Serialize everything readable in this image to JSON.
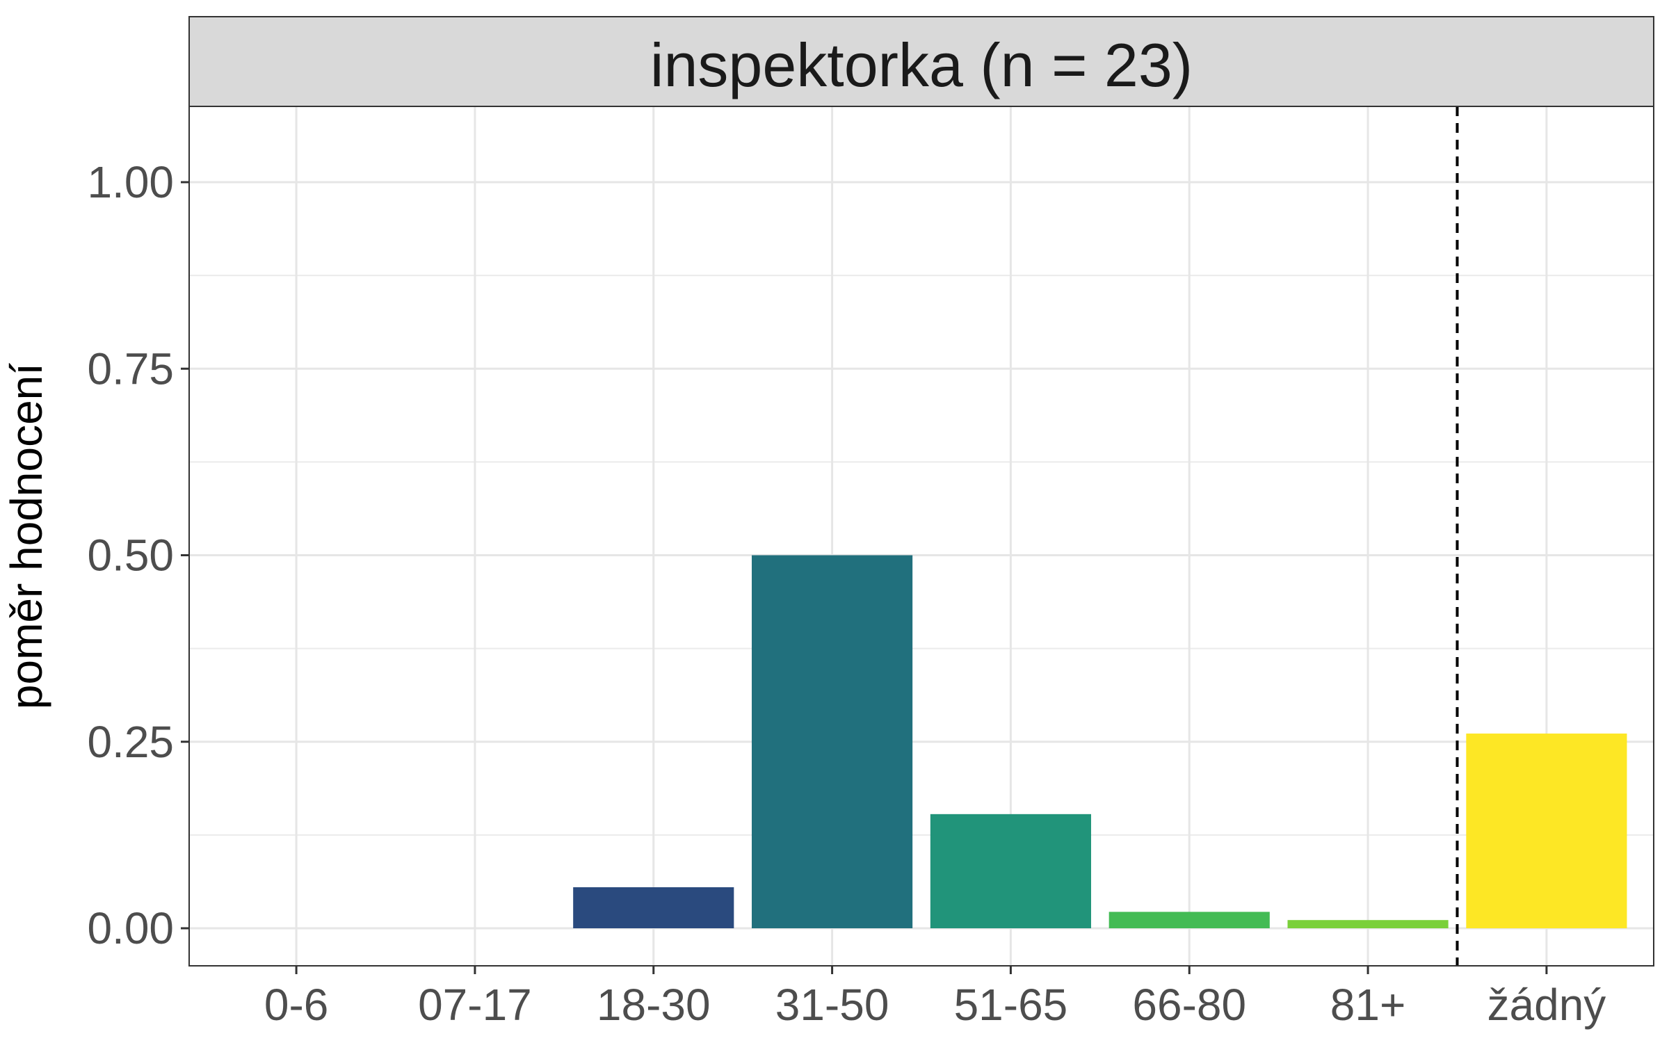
{
  "chart_data": {
    "type": "bar",
    "facet_title": "inspektorka (n = 23)",
    "xlabel": "",
    "ylabel": "poměr hodnocení",
    "ylim": [
      0,
      1.1
    ],
    "y_ticks": [
      "0.00",
      "0.25",
      "0.50",
      "0.75",
      "1.00"
    ],
    "y_tick_values": [
      0,
      0.25,
      0.5,
      0.75,
      1.0
    ],
    "categories": [
      "0-6",
      "07-17",
      "18-30",
      "31-50",
      "51-65",
      "66-80",
      "81+",
      "žádný"
    ],
    "values": [
      0,
      0,
      0.055,
      0.5,
      0.153,
      0.022,
      0.011,
      0.261
    ],
    "colors": [
      "#440154",
      "#46337E",
      "#2A4A7E",
      "#21707D",
      "#21947A",
      "#43BB54",
      "#7AD03A",
      "#FDE725"
    ],
    "reference_line": {
      "between": [
        "81+",
        "žádný"
      ],
      "style": "dashed"
    },
    "grid": true,
    "legend": "none"
  }
}
